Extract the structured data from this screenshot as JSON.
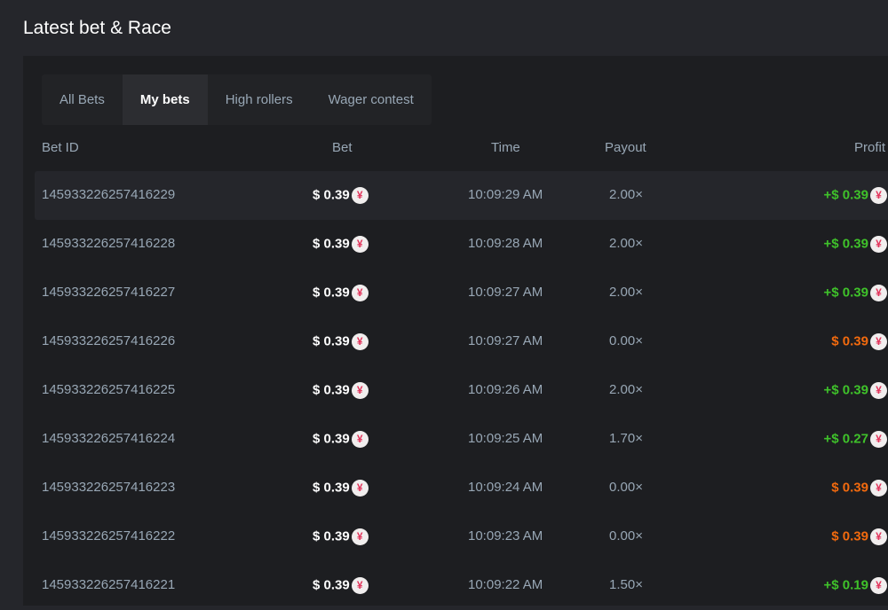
{
  "title": "Latest bet & Race",
  "tabs": [
    {
      "label": "All Bets"
    },
    {
      "label": "My bets",
      "active": true
    },
    {
      "label": "High rollers"
    },
    {
      "label": "Wager contest"
    }
  ],
  "columns": {
    "id": "Bet ID",
    "bet": "Bet",
    "time": "Time",
    "payout": "Payout",
    "profit": "Profit"
  },
  "colors": {
    "win": "#3fc22a",
    "loss": "#f26a0e",
    "coin": "#e2335a"
  },
  "coin_glyph": "¥",
  "rows": [
    {
      "id": "145933226257416229",
      "bet": "$ 0.39",
      "time": "10:09:29 AM",
      "payout": "2.00×",
      "profit": "+$ 0.39",
      "win": true
    },
    {
      "id": "145933226257416228",
      "bet": "$ 0.39",
      "time": "10:09:28 AM",
      "payout": "2.00×",
      "profit": "+$ 0.39",
      "win": true
    },
    {
      "id": "145933226257416227",
      "bet": "$ 0.39",
      "time": "10:09:27 AM",
      "payout": "2.00×",
      "profit": "+$ 0.39",
      "win": true
    },
    {
      "id": "145933226257416226",
      "bet": "$ 0.39",
      "time": "10:09:27 AM",
      "payout": "0.00×",
      "profit": "$ 0.39",
      "win": false
    },
    {
      "id": "145933226257416225",
      "bet": "$ 0.39",
      "time": "10:09:26 AM",
      "payout": "2.00×",
      "profit": "+$ 0.39",
      "win": true
    },
    {
      "id": "145933226257416224",
      "bet": "$ 0.39",
      "time": "10:09:25 AM",
      "payout": "1.70×",
      "profit": "+$ 0.27",
      "win": true
    },
    {
      "id": "145933226257416223",
      "bet": "$ 0.39",
      "time": "10:09:24 AM",
      "payout": "0.00×",
      "profit": "$ 0.39",
      "win": false
    },
    {
      "id": "145933226257416222",
      "bet": "$ 0.39",
      "time": "10:09:23 AM",
      "payout": "0.00×",
      "profit": "$ 0.39",
      "win": false
    },
    {
      "id": "145933226257416221",
      "bet": "$ 0.39",
      "time": "10:09:22 AM",
      "payout": "1.50×",
      "profit": "+$ 0.19",
      "win": true
    }
  ]
}
